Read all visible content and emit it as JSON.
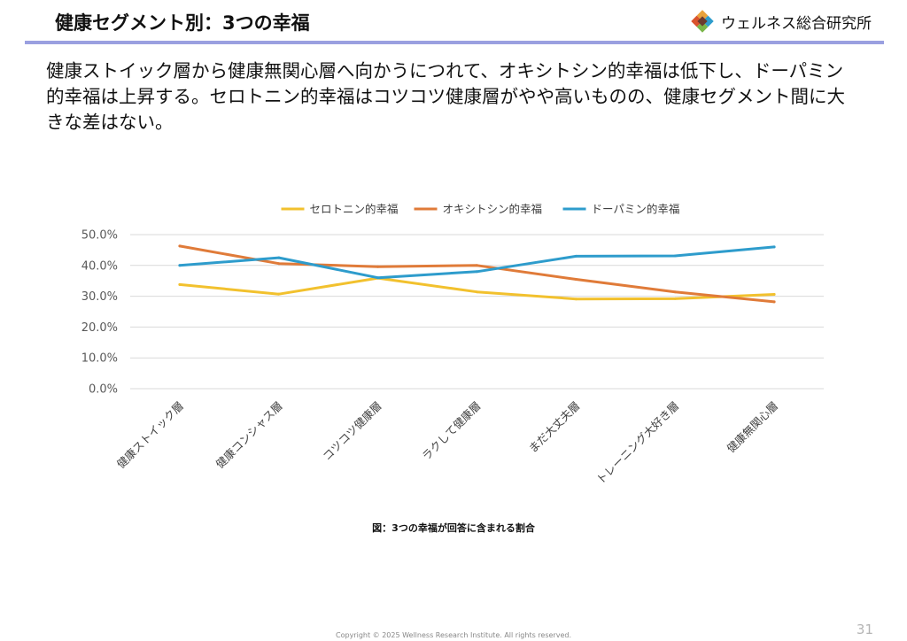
{
  "header": {
    "title": "健康セグメント別：3つの幸福",
    "brand_name": "ウェルネス総合研究所",
    "brand_logo_icon": "diamond-mosaic-logo"
  },
  "summary": "健康ストイック層から健康無関心層へ向かうにつれて、オキシトシン的幸福は低下し、ドーパミン的幸福は上昇する。セロトニン的幸福はコツコツ健康層がやや高いものの、健康セグメント間に大きな差はない。",
  "caption": "図：3つの幸福が回答に含まれる割合",
  "footer": {
    "copyright": "Copyright © 2025 Wellness Research Institute. All rights reserved.",
    "page_number": "31"
  },
  "chart_data": {
    "type": "line",
    "categories": [
      "健康ストイック層",
      "健康コンシャス層",
      "コツコツ健康層",
      "ラクして健康層",
      "まだ大丈夫層",
      "トレーニング大好き層",
      "健康無関心層"
    ],
    "series": [
      {
        "name": "セロトニン的幸福",
        "color": "#f2c12e",
        "values": [
          33.8,
          30.7,
          35.9,
          31.4,
          29.1,
          29.2,
          30.6
        ]
      },
      {
        "name": "オキシトシン的幸福",
        "color": "#e07b39",
        "values": [
          46.3,
          40.6,
          39.6,
          40.0,
          35.5,
          31.4,
          28.2
        ]
      },
      {
        "name": "ドーパミン的幸福",
        "color": "#2e9ccc",
        "values": [
          40.0,
          42.5,
          36.0,
          38.0,
          43.0,
          43.1,
          46.0
        ]
      }
    ],
    "ylim": [
      0,
      50
    ],
    "yticks": [
      0,
      10,
      20,
      30,
      40,
      50
    ],
    "ytick_labels": [
      "0.0%",
      "10.0%",
      "20.0%",
      "30.0%",
      "40.0%",
      "50.0%"
    ],
    "grid": true,
    "legend_position": "top"
  }
}
